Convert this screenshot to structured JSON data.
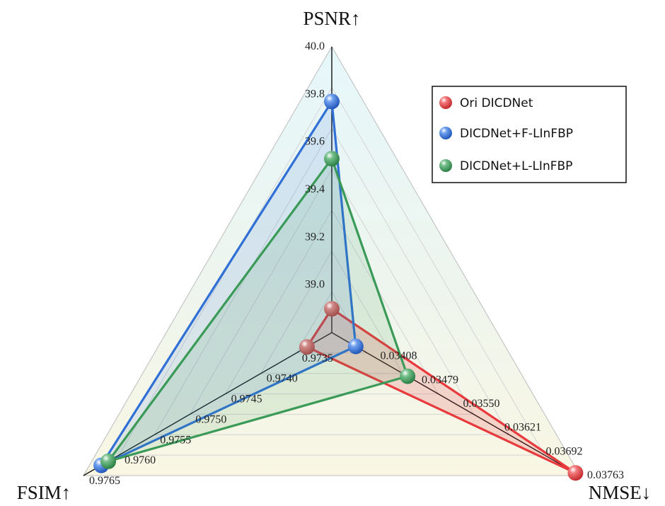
{
  "chart_data": {
    "type": "radar",
    "axes": [
      {
        "name": "PSNR↑",
        "range": [
          38.8,
          40.0
        ],
        "ticks": [
          "39.0",
          "39.2",
          "39.4",
          "39.6",
          "39.8",
          "40.0"
        ],
        "tick_values": [
          39.0,
          39.2,
          39.4,
          39.6,
          39.8,
          40.0
        ]
      },
      {
        "name": "NMSE↓",
        "range": [
          0.03337,
          0.03763
        ],
        "ticks": [
          "0.03408",
          "0.03479",
          "0.03550",
          "0.03621",
          "0.03692",
          "0.03763"
        ],
        "tick_values": [
          0.03408,
          0.03479,
          0.0355,
          0.03621,
          0.03692,
          0.03763
        ]
      },
      {
        "name": "FSIM↑",
        "range": [
          0.973,
          0.9765
        ],
        "ticks": [
          "0.9735",
          "0.9740",
          "0.9745",
          "0.9750",
          "0.9755",
          "0.9760",
          "0.9765"
        ],
        "tick_values": [
          0.9735,
          0.974,
          0.9745,
          0.975,
          0.9755,
          0.976,
          0.9765
        ]
      }
    ],
    "series": [
      {
        "name": "Ori DICDNet",
        "color": "#e8393d",
        "marker_color": "#b85450",
        "values": [
          38.9,
          0.03755,
          0.97335
        ]
      },
      {
        "name": "DICDNet+F-LInFBP",
        "color": "#2f6fd6",
        "marker_color": "#2f6fd6",
        "values": [
          39.77,
          0.03378,
          0.97625
        ]
      },
      {
        "name": "DICDNet+L-LInFBP",
        "color": "#3a9a57",
        "marker_color": "#3a9a57",
        "values": [
          39.53,
          0.03467,
          0.97615
        ]
      }
    ],
    "legend_position": "top-right",
    "grid": true
  }
}
